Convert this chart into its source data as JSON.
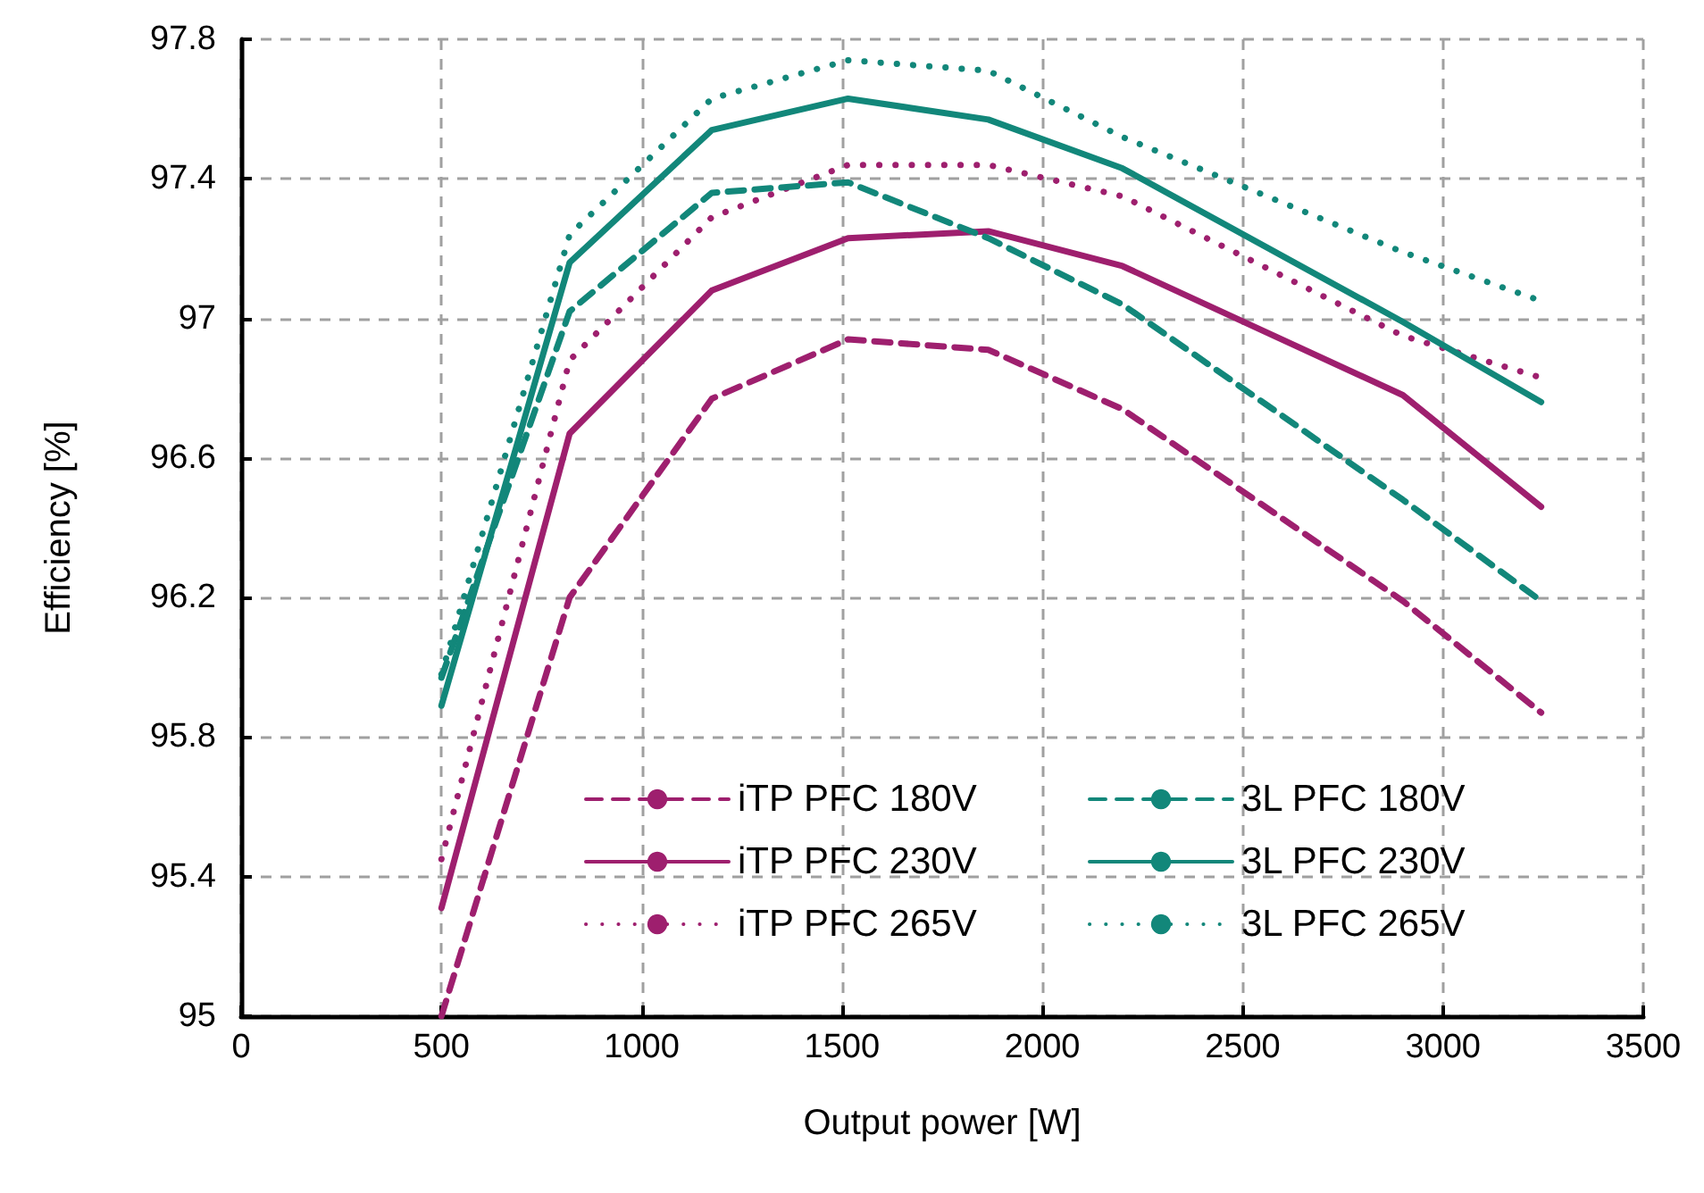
{
  "chart_data": {
    "type": "line",
    "xlabel": "Output power [W]",
    "ylabel": "Efficiency [%]",
    "x": [
      500,
      820,
      1175,
      1515,
      1865,
      2200,
      2900,
      3245
    ],
    "series": [
      {
        "name": "iTP PFC 180V",
        "color": "#9e1f6e",
        "line_style": "dashed",
        "values": [
          95.0,
          96.2,
          96.77,
          96.94,
          96.91,
          96.74,
          96.19,
          95.87
        ]
      },
      {
        "name": "iTP PFC 230V",
        "color": "#9e1f6e",
        "line_style": "solid",
        "values": [
          95.31,
          96.67,
          97.08,
          97.23,
          97.25,
          97.15,
          96.78,
          96.46
        ]
      },
      {
        "name": "iTP PFC 265V",
        "color": "#9e1f6e",
        "line_style": "dotted",
        "values": [
          95.45,
          96.88,
          97.29,
          97.44,
          97.44,
          97.35,
          96.95,
          96.83
        ]
      },
      {
        "name": "3L PFC 180V",
        "color": "#12877a",
        "line_style": "dashed",
        "values": [
          95.97,
          97.02,
          97.36,
          97.39,
          97.23,
          97.04,
          96.48,
          96.19
        ]
      },
      {
        "name": "3L PFC 230V",
        "color": "#12877a",
        "line_style": "solid",
        "values": [
          95.89,
          97.16,
          97.54,
          97.63,
          97.57,
          97.43,
          96.99,
          96.76
        ]
      },
      {
        "name": "3L PFC 265V",
        "color": "#12877a",
        "line_style": "dotted",
        "values": [
          95.98,
          97.24,
          97.63,
          97.74,
          97.71,
          97.52,
          97.19,
          97.05
        ]
      }
    ],
    "xlim": [
      0,
      3500
    ],
    "xticks": [
      0,
      500,
      1000,
      1500,
      2000,
      2500,
      3000,
      3500
    ],
    "ylim": [
      95,
      97.8
    ],
    "yticks": [
      95,
      95.4,
      95.8,
      96.2,
      96.6,
      97,
      97.4,
      97.8
    ],
    "grid": true,
    "legend": "bottom right",
    "marker": "none"
  }
}
